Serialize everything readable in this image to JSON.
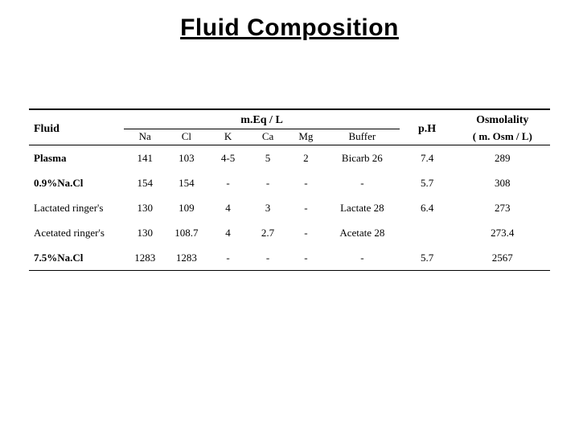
{
  "title": "Fluid Composition",
  "table": {
    "header": {
      "fluid": "Fluid",
      "meq_label": "m.Eq / L",
      "ph": "p.H",
      "osm": "Osmolality",
      "sub": {
        "na": "Na",
        "cl": "Cl",
        "k": "K",
        "ca": "Ca",
        "mg": "Mg",
        "buffer": "Buffer",
        "osm_unit": "( m. Osm / L)"
      }
    },
    "rows": [
      {
        "fluid": "Plasma",
        "bold": true,
        "na": "141",
        "cl": "103",
        "k": "4-5",
        "ca": "5",
        "mg": "2",
        "buffer": "Bicarb 26",
        "ph": "7.4",
        "osm": "289"
      },
      {
        "fluid": "0.9%Na.Cl",
        "bold": true,
        "na": "154",
        "cl": "154",
        "k": "-",
        "ca": "-",
        "mg": "-",
        "buffer": "-",
        "ph": "5.7",
        "osm": "308"
      },
      {
        "fluid": "Lactated ringer's",
        "bold": false,
        "na": "130",
        "cl": "109",
        "k": "4",
        "ca": "3",
        "mg": "-",
        "buffer": "Lactate 28",
        "ph": "6.4",
        "osm": "273"
      },
      {
        "fluid": "Acetated ringer's",
        "bold": false,
        "na": "130",
        "cl": "108.7",
        "k": "4",
        "ca": "2.7",
        "mg": "-",
        "buffer": "Acetate 28",
        "ph": "",
        "osm": "273.4"
      },
      {
        "fluid": "7.5%Na.Cl",
        "bold": true,
        "na": "1283",
        "cl": "1283",
        "k": "-",
        "ca": "-",
        "mg": "-",
        "buffer": "-",
        "ph": "5.7",
        "osm": "2567"
      }
    ]
  }
}
